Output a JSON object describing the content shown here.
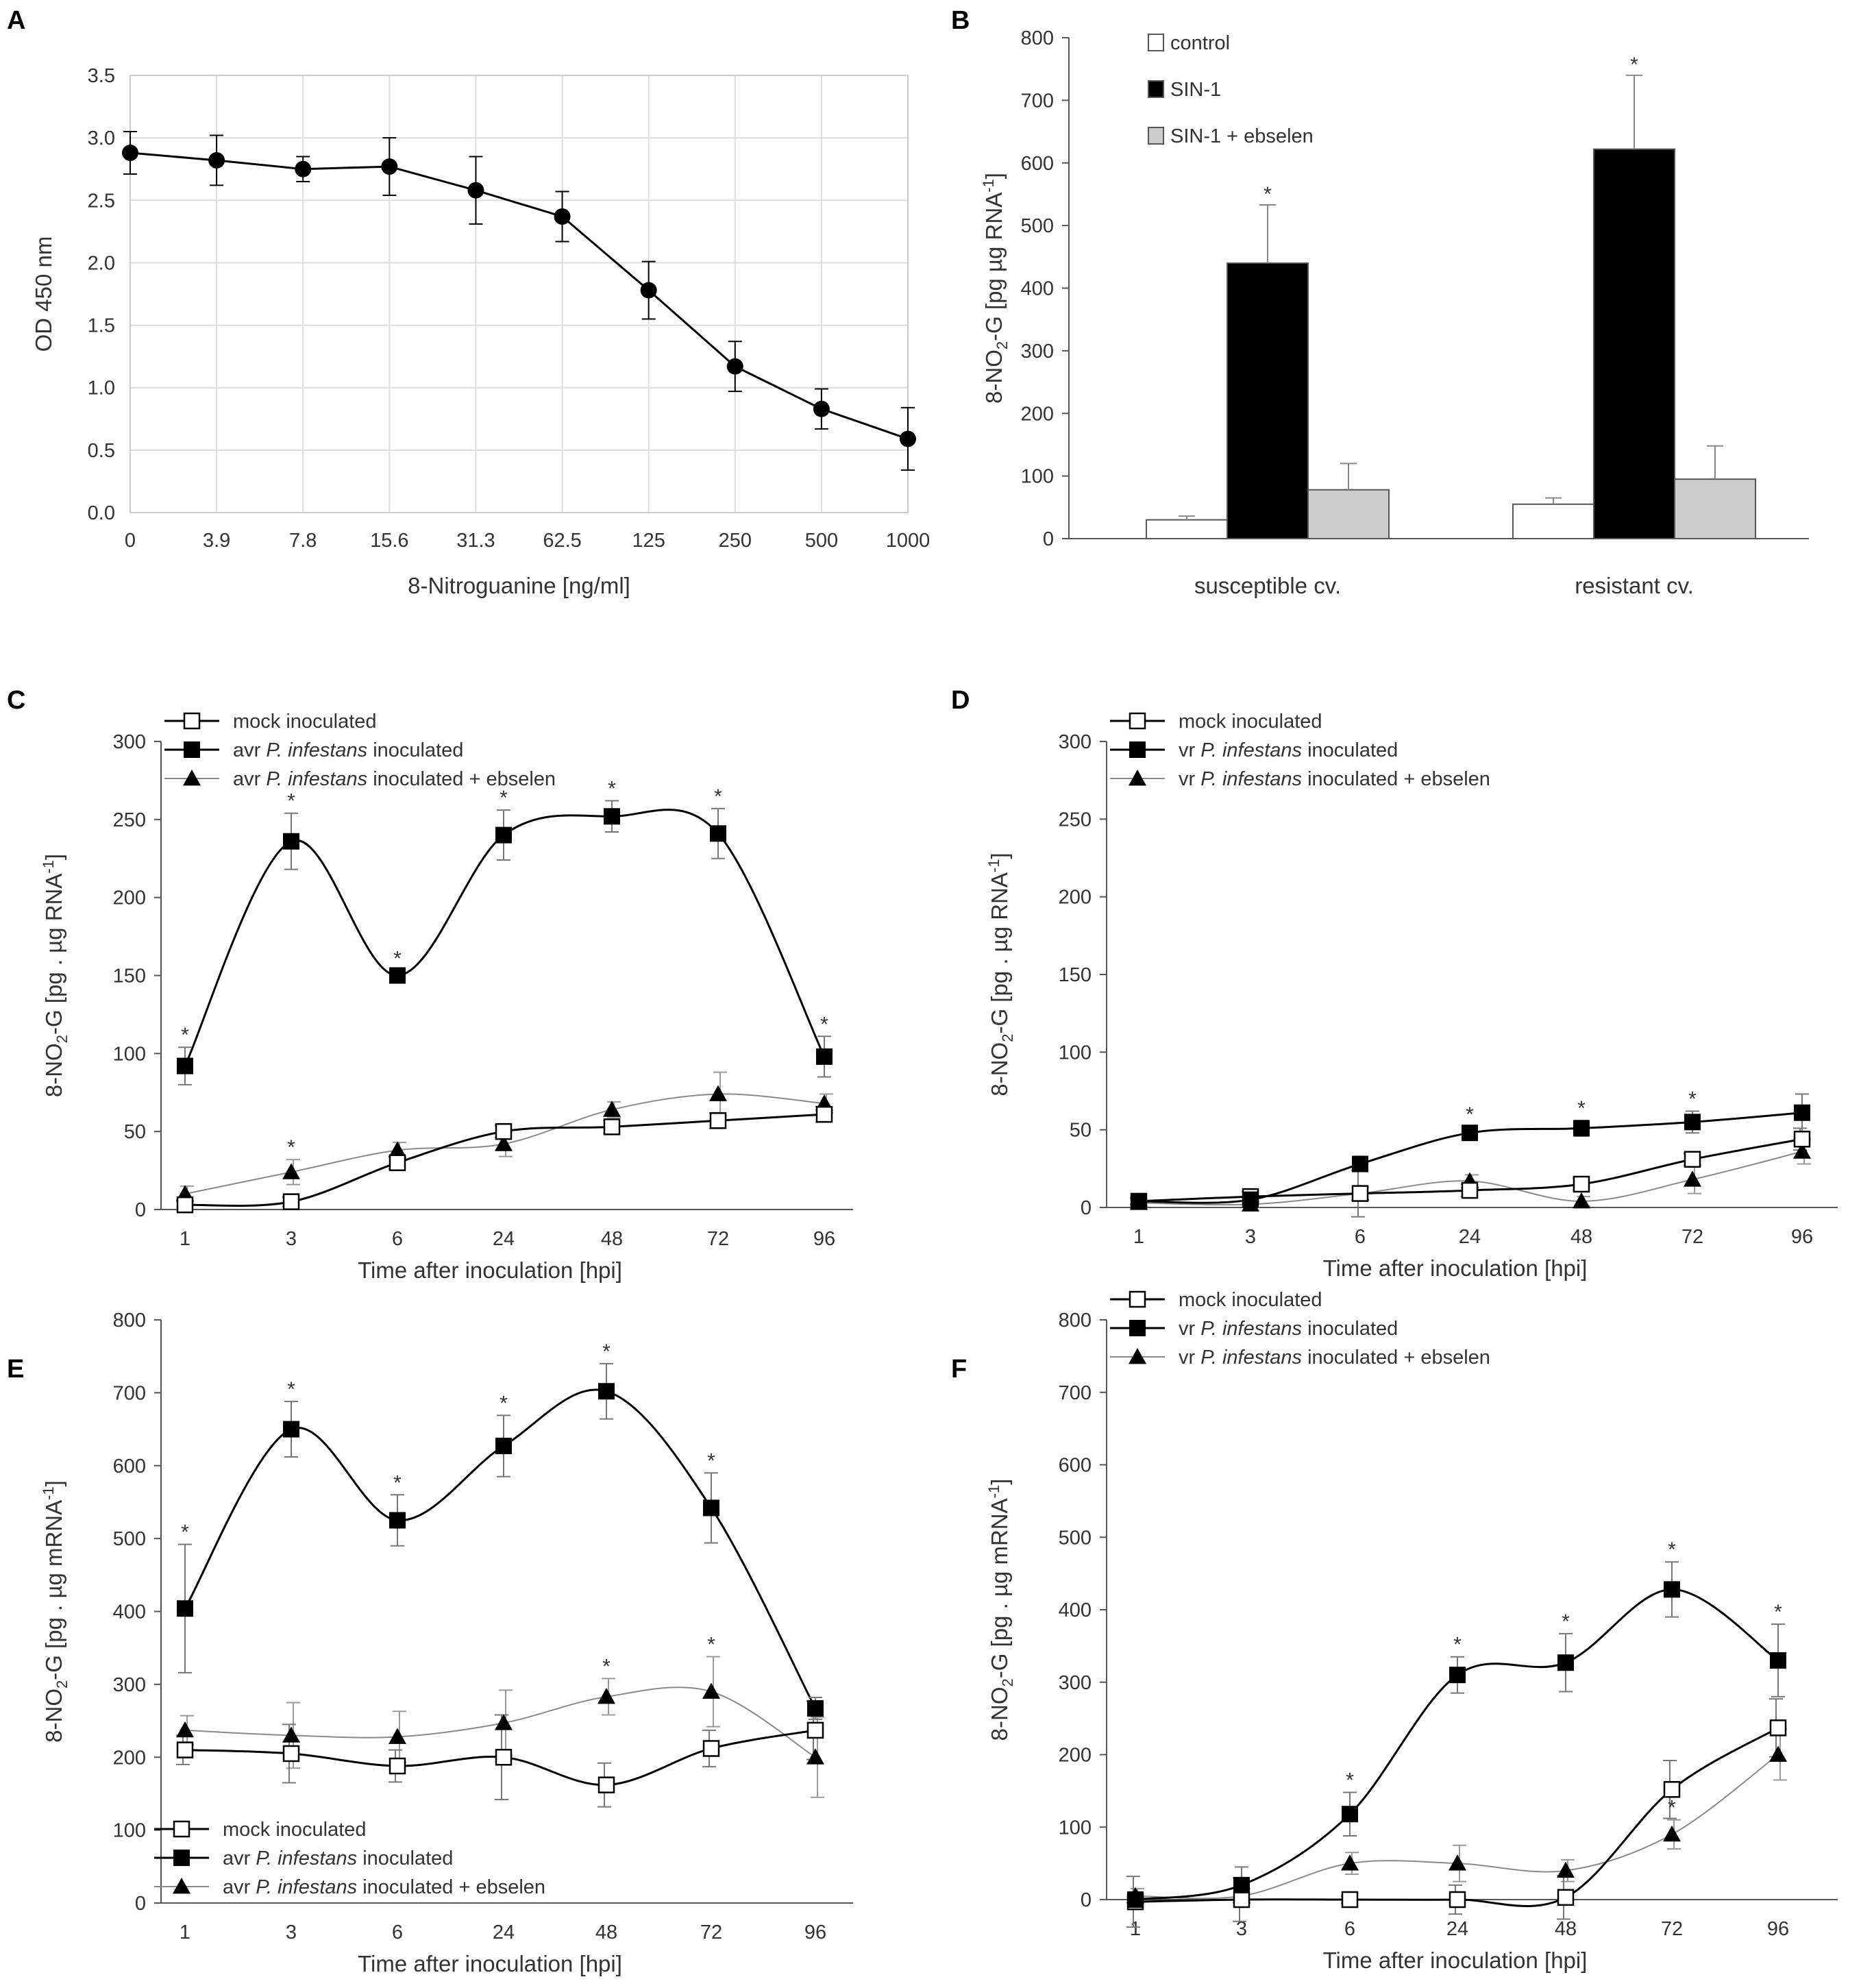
{
  "chart_data": [
    {
      "panel": "A",
      "type": "line",
      "categories": [
        "0",
        "3.9",
        "7.8",
        "15.6",
        "31.3",
        "62.5",
        "125",
        "250",
        "500",
        "1000"
      ],
      "values": [
        2.88,
        2.82,
        2.75,
        2.77,
        2.58,
        2.37,
        1.78,
        1.17,
        0.83,
        0.59
      ],
      "errors": [
        0.17,
        0.2,
        0.1,
        0.23,
        0.27,
        0.2,
        0.23,
        0.2,
        0.16,
        0.25
      ],
      "xlabel": "8-Nitroguanine [ng/ml]",
      "ylabel": "OD 450 nm",
      "ylim": [
        0,
        3.5
      ],
      "yticks": [
        "0.0",
        "0.5",
        "1.0",
        "1.5",
        "2.0",
        "2.5",
        "3.0",
        "3.5"
      ],
      "grid": true,
      "marker": "circle"
    },
    {
      "panel": "B",
      "type": "bar",
      "categories": [
        "susceptible cv.",
        "resistant cv."
      ],
      "ylabel_parts": [
        "8-NO",
        "2",
        "-G [pg  µg RNA",
        "-1",
        "]"
      ],
      "ylim": [
        0,
        800
      ],
      "yticks": [
        "0",
        "100",
        "200",
        "300",
        "400",
        "500",
        "600",
        "700",
        "800"
      ],
      "legend_position": "top-left",
      "series": [
        {
          "name": "control",
          "values": [
            30,
            55
          ],
          "errors": [
            6,
            10
          ],
          "color": "#ffffff",
          "stars": [
            false,
            false
          ]
        },
        {
          "name": "SIN-1",
          "values": [
            440,
            622
          ],
          "errors": [
            93,
            118
          ],
          "color": "#000000",
          "stars": [
            true,
            true
          ]
        },
        {
          "name": "SIN-1 + ebselen",
          "values": [
            78,
            95
          ],
          "errors": [
            42,
            53
          ],
          "color": "#cccccc",
          "stars": [
            false,
            false
          ]
        }
      ],
      "star_symbol": "*"
    },
    {
      "panel": "C",
      "type": "line",
      "categories": [
        "1",
        "3",
        "6",
        "24",
        "48",
        "72",
        "96"
      ],
      "xlabel": "Time after inoculation [hpi]",
      "ylabel_parts": [
        "8-NO",
        "2",
        "-G [pg . µg RNA",
        "-1",
        "]"
      ],
      "ylim": [
        0,
        300
      ],
      "yticks": [
        "0",
        "50",
        "100",
        "150",
        "200",
        "250",
        "300"
      ],
      "legend_position": "top-left",
      "legend": [
        {
          "marker": "open-square",
          "pre": "mock inoculated",
          "italic": "",
          "post": ""
        },
        {
          "marker": "filled-square",
          "pre": "avr ",
          "italic": "P. infestans",
          "post": " inoculated"
        },
        {
          "marker": "triangle",
          "pre": "avr ",
          "italic": "P. infestans",
          "post": " inoculated + ebselen"
        }
      ],
      "series": [
        {
          "name": "mock inoculated",
          "values": [
            3,
            5,
            30,
            50,
            53,
            57,
            61
          ],
          "errors": [
            3,
            3,
            4,
            4,
            4,
            5,
            5
          ],
          "stars": [
            false,
            false,
            false,
            false,
            false,
            false,
            false
          ],
          "marker": "open-square",
          "color": "#000000"
        },
        {
          "name": "avr P. infestans inoculated",
          "values": [
            92,
            236,
            150,
            240,
            252,
            241,
            98
          ],
          "errors": [
            12,
            18,
            3,
            16,
            10,
            16,
            13
          ],
          "stars": [
            true,
            true,
            true,
            true,
            true,
            true,
            true
          ],
          "marker": "filled-square",
          "color": "#000000"
        },
        {
          "name": "avr P. infestans inoculated + ebselen",
          "values": [
            10,
            24,
            38,
            42,
            64,
            74,
            68
          ],
          "errors": [
            5,
            8,
            5,
            8,
            5,
            14,
            6
          ],
          "stars": [
            false,
            true,
            false,
            false,
            false,
            false,
            false
          ],
          "marker": "triangle",
          "color": "#8a8a8a"
        }
      ],
      "star_symbol": "*"
    },
    {
      "panel": "D",
      "type": "line",
      "categories": [
        "1",
        "3",
        "6",
        "24",
        "48",
        "72",
        "96"
      ],
      "xlabel": "Time after inoculation [hpi]",
      "ylabel_parts": [
        "8-NO",
        "2",
        "-G [pg . µg RNA",
        "-1",
        "]"
      ],
      "ylim": [
        0,
        300
      ],
      "yticks": [
        "0",
        "50",
        "100",
        "150",
        "200",
        "250",
        "300"
      ],
      "legend_position": "top-left",
      "legend": [
        {
          "marker": "open-square",
          "pre": "mock inoculated",
          "italic": "",
          "post": ""
        },
        {
          "marker": "filled-square",
          "pre": "vr ",
          "italic": "P. infestans",
          "post": " inoculated"
        },
        {
          "marker": "triangle",
          "pre": "vr ",
          "italic": "P. infestans",
          "post": " inoculated + ebselen"
        }
      ],
      "series": [
        {
          "name": "mock inoculated",
          "values": [
            4,
            7,
            9,
            11,
            15,
            31,
            44
          ],
          "errors": [
            2,
            3,
            15,
            4,
            4,
            4,
            7
          ],
          "stars": [
            false,
            false,
            false,
            false,
            false,
            false,
            false
          ],
          "marker": "open-square",
          "color": "#000000"
        },
        {
          "name": "vr P. infestans inoculated",
          "values": [
            4,
            5,
            28,
            48,
            51,
            55,
            61
          ],
          "errors": [
            2,
            2,
            4,
            4,
            5,
            7,
            12
          ],
          "stars": [
            false,
            false,
            false,
            true,
            true,
            true,
            false
          ],
          "marker": "filled-square",
          "color": "#000000"
        },
        {
          "name": "vr P. infestans inoculated + ebselen",
          "values": [
            3,
            2,
            9,
            17,
            4,
            18,
            36
          ],
          "errors": [
            2,
            2,
            4,
            4,
            3,
            9,
            8
          ],
          "stars": [
            false,
            false,
            false,
            false,
            false,
            false,
            false
          ],
          "marker": "triangle",
          "color": "#8a8a8a"
        }
      ],
      "star_symbol": "*"
    },
    {
      "panel": "E",
      "type": "line",
      "categories": [
        "1",
        "3",
        "6",
        "24",
        "48",
        "72",
        "96"
      ],
      "xlabel": "Time after inoculation [hpi]",
      "ylabel_parts": [
        "8-NO",
        "2",
        "-G [pg . µg mRNA",
        "-1",
        "]"
      ],
      "ylim": [
        0,
        800
      ],
      "yticks": [
        "0",
        "100",
        "200",
        "300",
        "400",
        "500",
        "600",
        "700",
        "800"
      ],
      "legend_position": "bottom-left",
      "legend": [
        {
          "marker": "open-square",
          "pre": "mock inoculated",
          "italic": "",
          "post": ""
        },
        {
          "marker": "filled-square",
          "pre": "avr ",
          "italic": "P. infestans",
          "post": " inoculated"
        },
        {
          "marker": "triangle",
          "pre": "avr ",
          "italic": "P. infestans",
          "post": " inoculated + ebselen"
        }
      ],
      "series": [
        {
          "name": "mock inoculated",
          "values": [
            210,
            205,
            188,
            200,
            162,
            212,
            237
          ],
          "errors": [
            20,
            40,
            22,
            58,
            30,
            25,
            40
          ],
          "stars": [
            false,
            false,
            false,
            false,
            false,
            false,
            false
          ],
          "marker": "open-square",
          "color": "#000000"
        },
        {
          "name": "avr P. infestans inoculated",
          "values": [
            404,
            650,
            525,
            627,
            702,
            542,
            267
          ],
          "errors": [
            88,
            38,
            35,
            42,
            38,
            48,
            15
          ],
          "stars": [
            true,
            true,
            true,
            true,
            true,
            true,
            false
          ],
          "marker": "filled-square",
          "color": "#000000"
        },
        {
          "name": "avr P. infestans inoculated + ebselen",
          "values": [
            237,
            230,
            228,
            247,
            283,
            290,
            200
          ],
          "errors": [
            20,
            45,
            35,
            45,
            25,
            48,
            55
          ],
          "stars": [
            false,
            false,
            false,
            false,
            true,
            true,
            false
          ],
          "marker": "triangle",
          "color": "#8a8a8a"
        }
      ],
      "star_symbol": "*"
    },
    {
      "panel": "F",
      "type": "line",
      "categories": [
        "1",
        "3",
        "6",
        "24",
        "48",
        "72",
        "96"
      ],
      "xlabel": "Time after inoculation [hpi]",
      "ylabel_parts": [
        "8-NO",
        "2",
        "-G [pg . µg mRNA",
        "-1",
        "]"
      ],
      "ylim": [
        0,
        800
      ],
      "yticks": [
        "0",
        "100",
        "200",
        "300",
        "400",
        "500",
        "600",
        "700",
        "800"
      ],
      "legend_position": "top-left",
      "legend": [
        {
          "marker": "open-square",
          "pre": "mock inoculated",
          "italic": "",
          "post": ""
        },
        {
          "marker": "filled-square",
          "pre": "vr ",
          "italic": "P. infestans",
          "post": " inoculated"
        },
        {
          "marker": "triangle",
          "pre": "vr ",
          "italic": "P. infestans",
          "post": " inoculated + ebselen"
        }
      ],
      "series": [
        {
          "name": "mock inoculated",
          "values": [
            -3,
            0,
            0,
            0,
            3,
            152,
            237
          ],
          "errors": [
            35,
            30,
            5,
            20,
            30,
            40,
            40
          ],
          "stars": [
            false,
            false,
            false,
            false,
            false,
            false,
            false
          ],
          "marker": "open-square",
          "color": "#000000"
        },
        {
          "name": "vr P. infestans inoculated",
          "values": [
            0,
            20,
            118,
            310,
            327,
            428,
            330
          ],
          "errors": [
            10,
            25,
            30,
            25,
            40,
            38,
            50
          ],
          "stars": [
            false,
            false,
            true,
            true,
            true,
            true,
            true
          ],
          "marker": "filled-square",
          "color": "#000000"
        },
        {
          "name": "vr P. infestans inoculated + ebselen",
          "values": [
            5,
            5,
            50,
            50,
            40,
            90,
            200
          ],
          "errors": [
            10,
            10,
            15,
            25,
            15,
            20,
            35
          ],
          "stars": [
            false,
            false,
            false,
            false,
            false,
            true,
            false
          ],
          "marker": "triangle",
          "color": "#8a8a8a"
        }
      ],
      "star_symbol": "*"
    }
  ]
}
